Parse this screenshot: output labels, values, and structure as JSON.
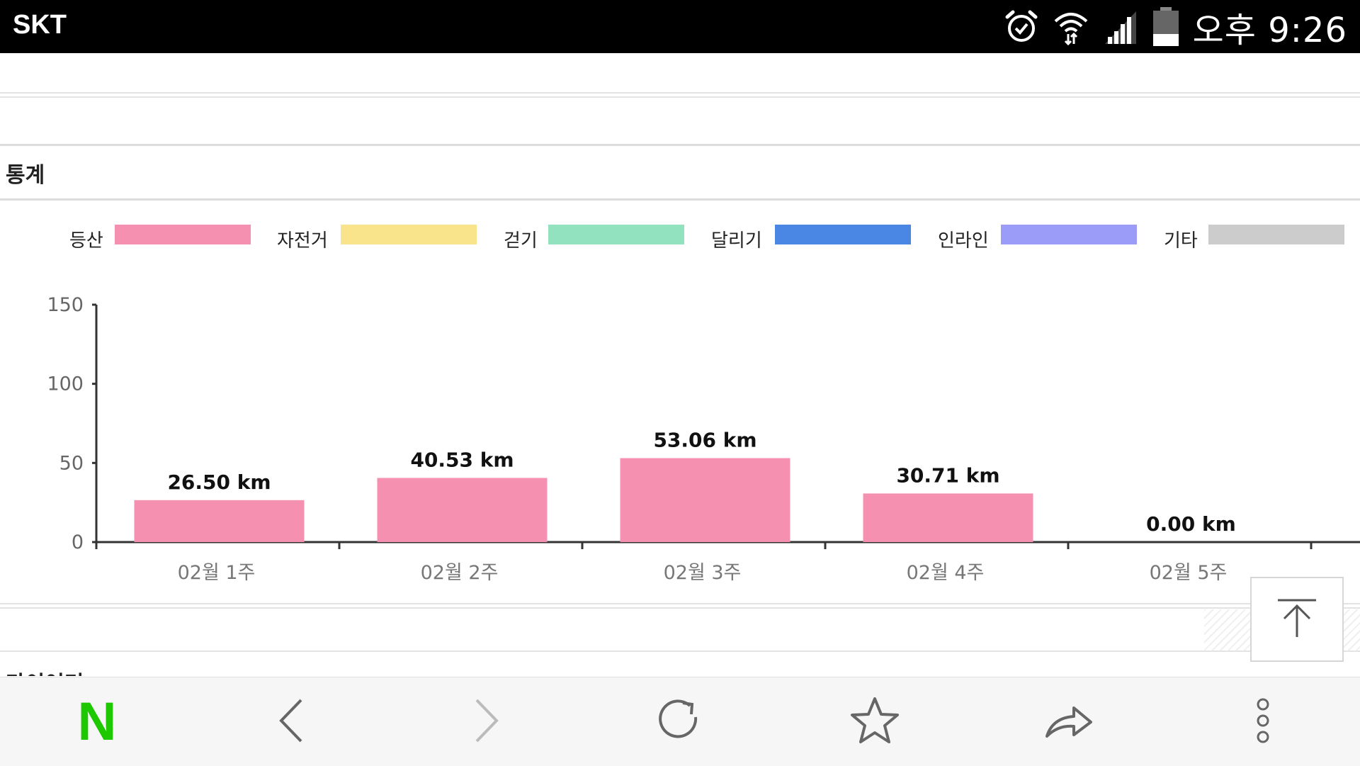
{
  "status_bar": {
    "carrier": "SKT",
    "time": "오후 9:26",
    "icons": [
      "alarm-icon",
      "wifi-icon",
      "signal-icon",
      "battery-icon"
    ]
  },
  "section": {
    "title": "통계",
    "next_title": "다이어리"
  },
  "colors": {
    "accent_naver": "#1ec800",
    "bar": "#f590b1"
  },
  "chart_data": {
    "type": "bar",
    "categories": [
      "02월 1주",
      "02월 2주",
      "02월 3주",
      "02월 4주",
      "02월 5주"
    ],
    "series": [
      {
        "name": "등산",
        "color": "#f590b1",
        "values": [
          26.5,
          40.53,
          53.06,
          30.71,
          0.0
        ]
      },
      {
        "name": "자전거",
        "color": "#fae48b",
        "values": [
          0,
          0,
          0,
          0,
          0
        ]
      },
      {
        "name": "걷기",
        "color": "#93e2bf",
        "values": [
          0,
          0,
          0,
          0,
          0
        ]
      },
      {
        "name": "달리기",
        "color": "#4a86e3",
        "values": [
          0,
          0,
          0,
          0,
          0
        ]
      },
      {
        "name": "인라인",
        "color": "#9b9bf8",
        "values": [
          0,
          0,
          0,
          0,
          0
        ]
      },
      {
        "name": "기타",
        "color": "#cccccc",
        "values": [
          0,
          0,
          0,
          0,
          0
        ]
      }
    ],
    "data_labels": [
      "26.50 km",
      "40.53 km",
      "53.06 km",
      "30.71 km",
      "0.00 km"
    ],
    "ylim": [
      0,
      150
    ],
    "yticks": [
      0,
      50,
      100,
      150
    ],
    "legend_position": "top",
    "grid": false
  },
  "bottom_bar": {
    "buttons": [
      "naver-home",
      "back",
      "forward",
      "refresh",
      "bookmark",
      "share",
      "more"
    ],
    "naver_logo": "N"
  }
}
